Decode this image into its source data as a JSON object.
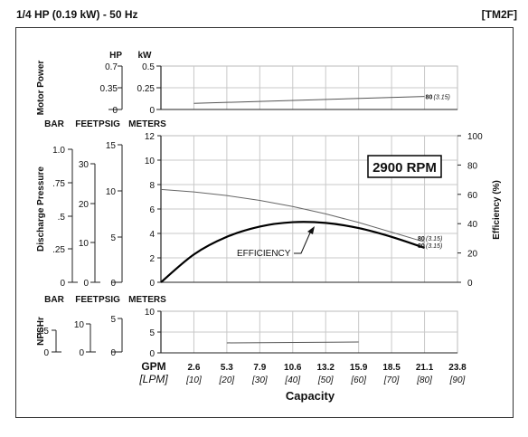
{
  "header": {
    "title": "1/4 HP (0.19 kW) - 50 Hz",
    "model": "[TM2F]"
  },
  "chart_data": {
    "type": "line",
    "x_axis": {
      "gpm_label": "GPM",
      "lpm_label": "[LPM]",
      "gpm_ticks": [
        "2.6",
        "5.3",
        "7.9",
        "10.6",
        "13.2",
        "15.9",
        "18.5",
        "21.1",
        "23.8"
      ],
      "lpm_ticks": [
        "[10]",
        "[20]",
        "[30]",
        "[40]",
        "[50]",
        "[60]",
        "[70]",
        "[80]",
        "[90]"
      ],
      "lpm_values": [
        10,
        20,
        30,
        40,
        50,
        60,
        70,
        80,
        90
      ],
      "xlim_lpm": [
        0,
        90
      ],
      "title": "Capacity"
    },
    "speed_label": "2900 RPM",
    "panels": {
      "motor_power": {
        "ylabel": "Motor Power",
        "unit_labels": [
          "HP",
          "kW"
        ],
        "hp_ticks": [
          "0.7",
          "0.35",
          "0"
        ],
        "kw_ticks": [
          "0.5",
          "0.25",
          "0"
        ],
        "ylim_kw": [
          0,
          0.5
        ],
        "series": [
          {
            "x_lpm": [
              10,
              80
            ],
            "y_kw": [
              0.07,
              0.15
            ],
            "label": "80",
            "label2": "(3.15)"
          }
        ]
      },
      "discharge": {
        "ylabel": "Discharge Pressure",
        "unit_labels": [
          "BAR",
          "FEET",
          "PSIG",
          "METERS"
        ],
        "bar_ticks": [
          "1.0",
          "0.75",
          "0.5",
          "0.25",
          "0"
        ],
        "bar_tick_labels": [
          "1.0",
          "–",
          "75",
          "–",
          ".5",
          "–",
          ".25",
          "–",
          "0"
        ],
        "feet_ticks": [
          "30",
          "20",
          "10",
          "0"
        ],
        "psig_ticks": [
          "15",
          "10",
          "5",
          "0"
        ],
        "meters_ticks": [
          "12",
          "10",
          "8",
          "6",
          "4",
          "2",
          "0"
        ],
        "ylim_meters": [
          0,
          12
        ],
        "head_curve": {
          "x_lpm": [
            0,
            10,
            20,
            30,
            40,
            50,
            60,
            70,
            80
          ],
          "y_meters": [
            7.6,
            7.4,
            7.1,
            6.7,
            6.2,
            5.6,
            4.9,
            4.1,
            3.3
          ],
          "label": "80",
          "label2": "(3.15)"
        },
        "efficiency": {
          "ylabel": "Efficiency (%)",
          "ticks": [
            "100",
            "80",
            "60",
            "40",
            "20",
            "0"
          ],
          "ylim": [
            0,
            100
          ],
          "annotation": "EFFICIENCY",
          "x_lpm": [
            0,
            10,
            20,
            30,
            40,
            50,
            60,
            70,
            80
          ],
          "y_pct": [
            0,
            19,
            31,
            38,
            41,
            40.5,
            37,
            31,
            23.5
          ],
          "label": "80",
          "label2": "(3.15)"
        }
      },
      "npshr": {
        "ylabel": "NPSHr",
        "unit_labels": [
          "BAR",
          "FEET",
          "PSIG",
          "METERS"
        ],
        "bar_ticks": [
          ".25",
          "0"
        ],
        "feet_ticks": [
          "10",
          "0"
        ],
        "psig_ticks": [
          "5",
          "0"
        ],
        "meters_ticks": [
          "10",
          "5",
          "0"
        ],
        "ylim_meters": [
          0,
          10
        ],
        "series": [
          {
            "x_lpm": [
              20,
              60
            ],
            "y_meters": [
              2.4,
              2.6
            ]
          }
        ]
      }
    }
  }
}
